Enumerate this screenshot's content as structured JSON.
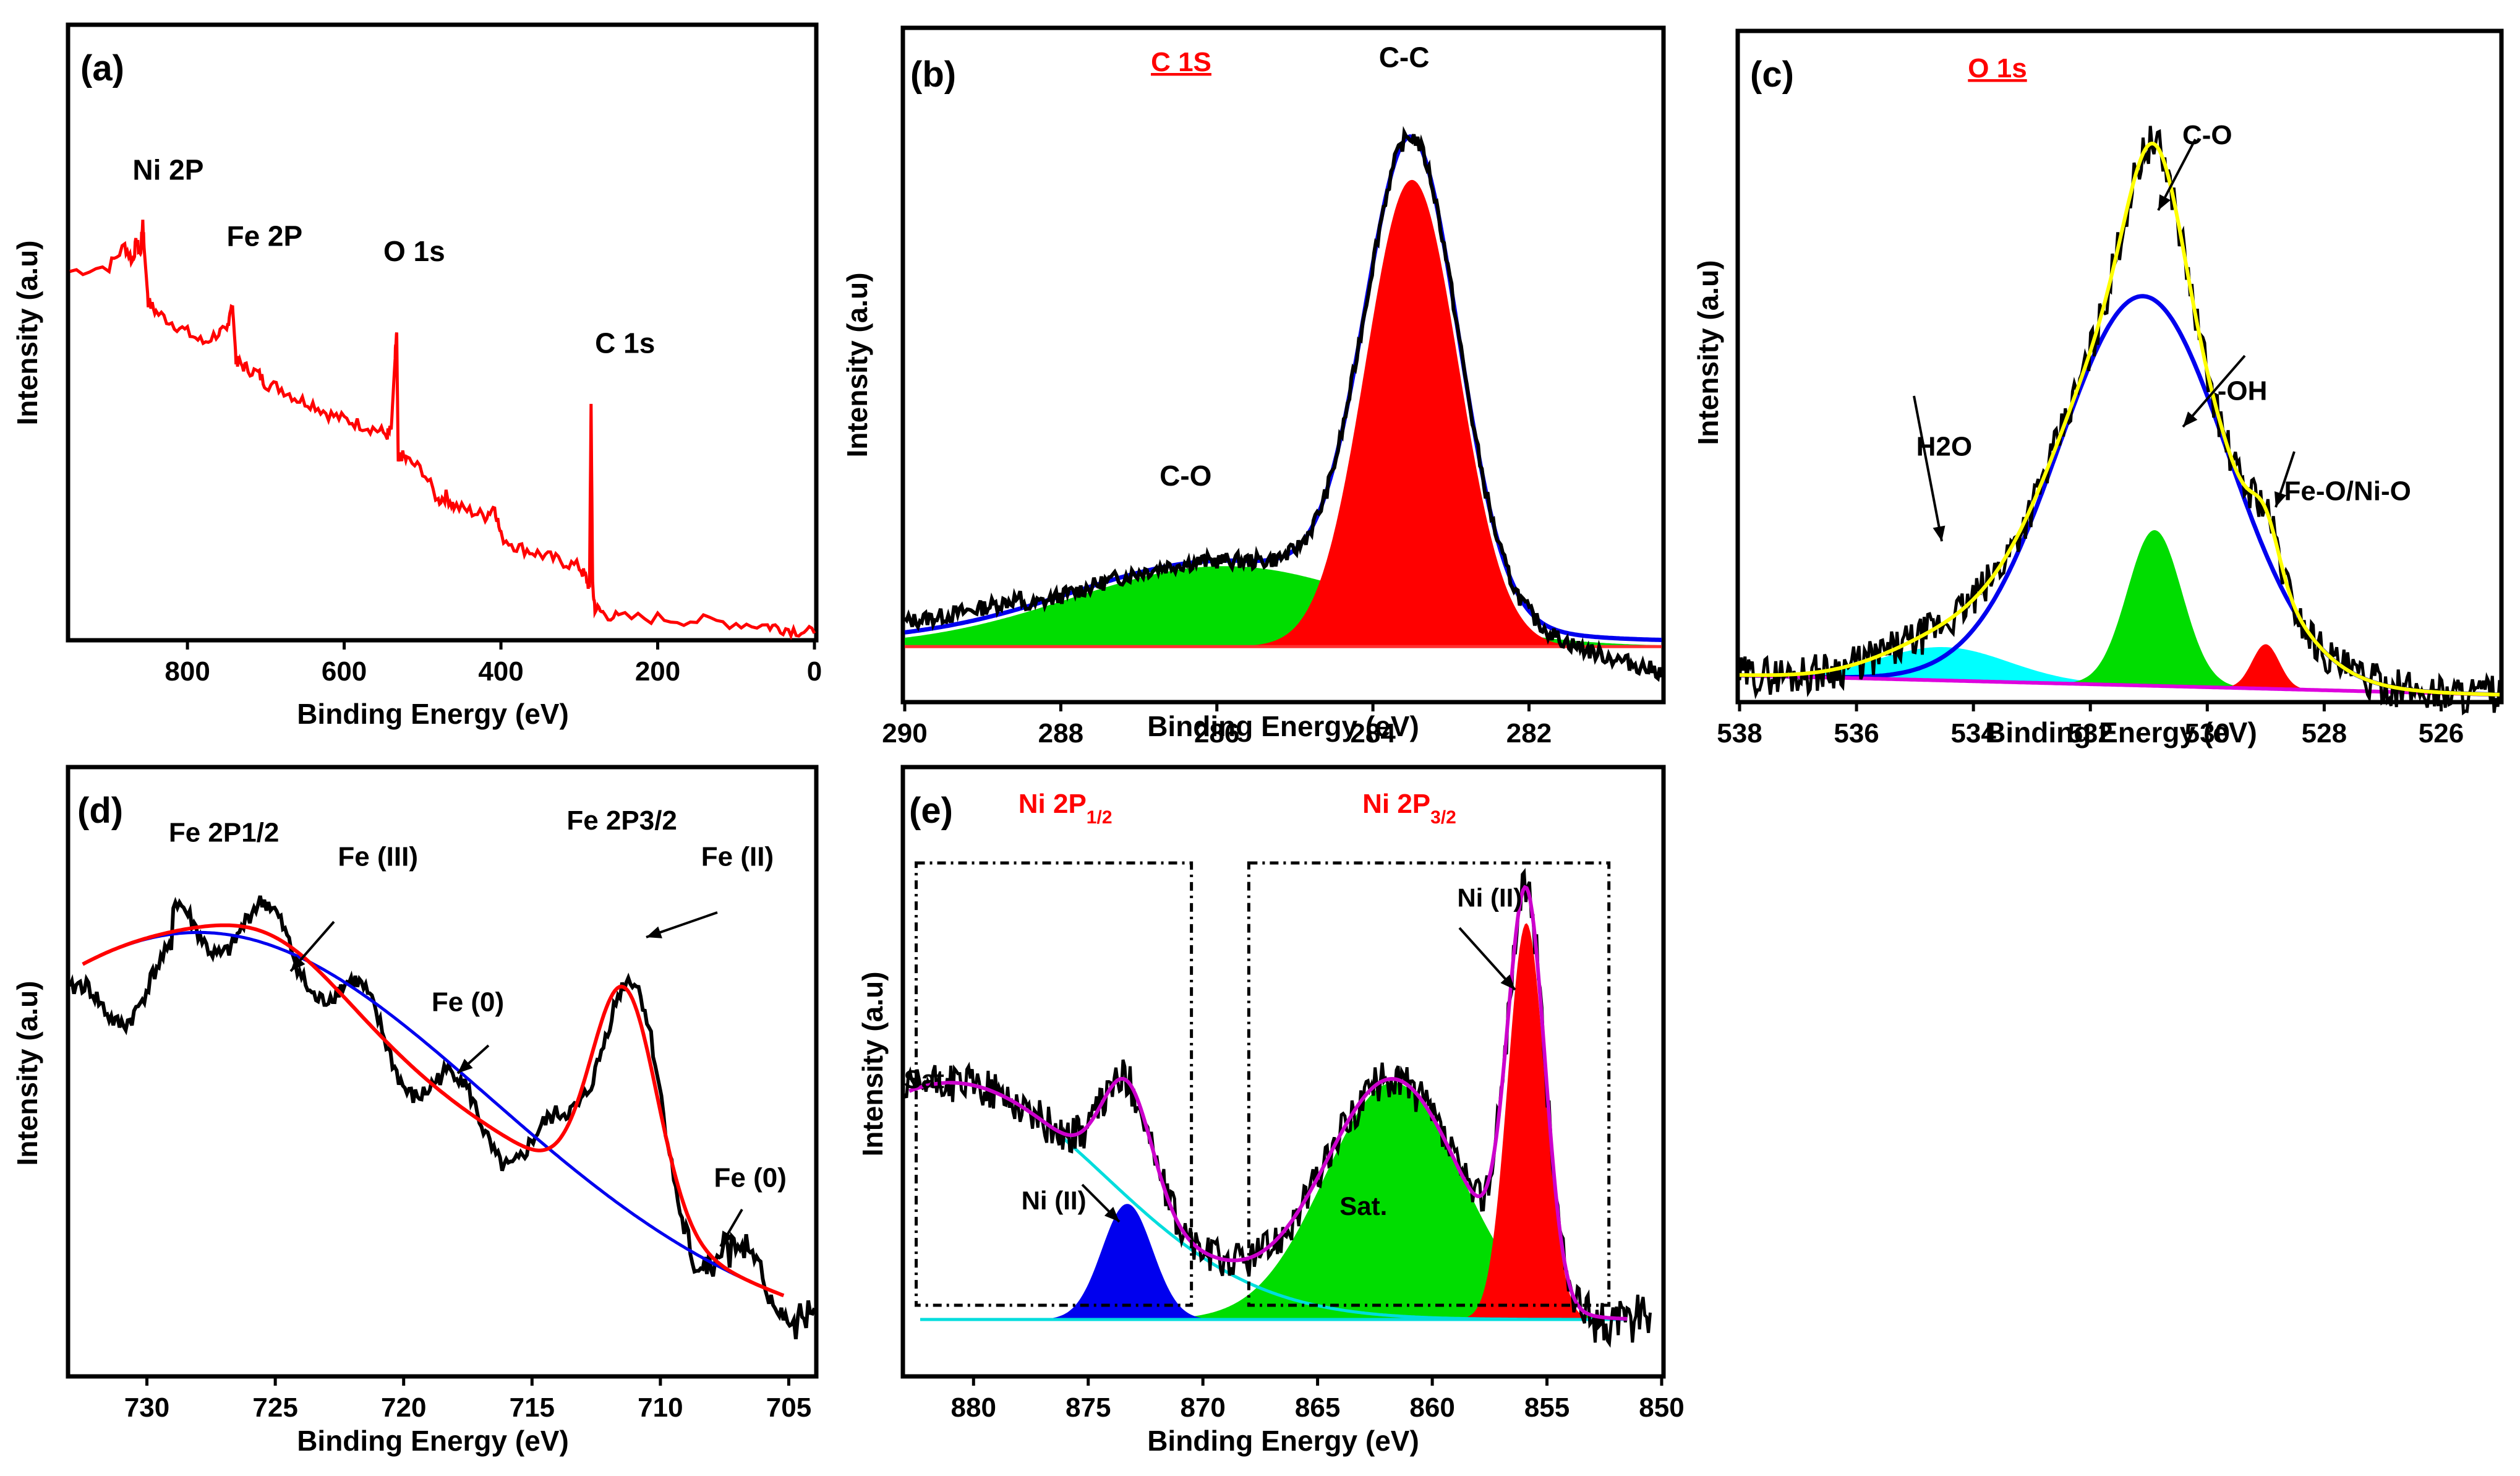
{
  "chart_data": [
    {
      "panel": "(a)",
      "type": "line",
      "title": "",
      "xlabel": "Binding Energy (eV)",
      "ylabel": "Intensity (a.u)",
      "xlim": [
        950,
        0
      ],
      "ylim": [
        0,
        1.2
      ],
      "xticks": [
        800,
        600,
        400,
        200,
        0
      ],
      "series": [
        {
          "name": "Survey",
          "color": "#ff0000",
          "x": [
            950,
            900,
            880,
            870,
            865,
            860,
            857,
            855,
            850,
            840,
            820,
            800,
            780,
            760,
            750,
            745,
            742,
            738,
            735,
            725,
            710,
            700,
            680,
            660,
            640,
            620,
            600,
            580,
            560,
            545,
            540,
            535,
            533,
            531,
            528,
            520,
            500,
            480,
            470,
            460,
            440,
            420,
            408,
            400,
            380,
            360,
            340,
            320,
            300,
            292,
            287,
            285,
            283,
            280,
            270,
            250,
            200,
            150,
            100,
            60,
            40,
            20,
            0
          ],
          "y": [
            0.72,
            0.73,
            0.77,
            0.74,
            0.78,
            0.75,
            0.82,
            0.76,
            0.66,
            0.64,
            0.62,
            0.6,
            0.58,
            0.6,
            0.6,
            0.65,
            0.64,
            0.55,
            0.54,
            0.53,
            0.52,
            0.5,
            0.49,
            0.47,
            0.46,
            0.44,
            0.43,
            0.42,
            0.41,
            0.4,
            0.41,
            0.55,
            0.6,
            0.34,
            0.36,
            0.35,
            0.33,
            0.27,
            0.28,
            0.26,
            0.25,
            0.24,
            0.26,
            0.2,
            0.18,
            0.17,
            0.16,
            0.15,
            0.14,
            0.12,
            0.1,
            0.46,
            0.1,
            0.06,
            0.05,
            0.04,
            0.04,
            0.035,
            0.03,
            0.025,
            0.02,
            0.015,
            0.01
          ]
        }
      ],
      "annotations": [
        {
          "text": "Ni 2P",
          "x": 870,
          "y": 0.9
        },
        {
          "text": "Fe 2P",
          "x": 750,
          "y": 0.77
        },
        {
          "text": "O 1s",
          "x": 550,
          "y": 0.74
        },
        {
          "text": "C 1s",
          "x": 280,
          "y": 0.56
        }
      ]
    },
    {
      "panel": "(b)",
      "type": "area",
      "title": "C 1S",
      "xlabel": "Binding Energy (eV)",
      "ylabel": "Intensity (a.u)",
      "xlim": [
        290,
        280.3
      ],
      "ylim": [
        -0.1,
        1.15
      ],
      "xticks": [
        290,
        288,
        286,
        284,
        282
      ],
      "series": [
        {
          "name": "C-C",
          "type": "peak",
          "color": "#ff0000",
          "center": 283.5,
          "fwhm": 1.4,
          "height": 0.87
        },
        {
          "name": "C-O",
          "type": "peak",
          "color": "#00dd00",
          "center": 285.9,
          "fwhm": 4.6,
          "height": 0.15
        },
        {
          "name": "Background",
          "type": "line",
          "color": "#ff3030",
          "value": 0.0
        },
        {
          "name": "Envelope",
          "type": "line",
          "color": "#0000ee"
        },
        {
          "name": "Experimental",
          "type": "line",
          "color": "#000000"
        }
      ],
      "annotations": [
        {
          "text": "C-C",
          "x": 283.6,
          "y": 1.08
        },
        {
          "text": "C-O",
          "x": 286.4,
          "y": 0.3
        }
      ]
    },
    {
      "panel": "(c)",
      "type": "area",
      "title": "O 1s",
      "xlabel": "Binding Energy (eV)",
      "ylabel": "Intensity (a.u)",
      "xlim": [
        538,
        525
      ],
      "ylim": [
        0,
        1.2
      ],
      "xticks": [
        538,
        536,
        534,
        532,
        530,
        528,
        526
      ],
      "series": [
        {
          "name": "C-O",
          "type": "peak",
          "color": "#0000ee",
          "center": 531.1,
          "fwhm": 3.4,
          "height": 0.7
        },
        {
          "name": "-OH",
          "type": "peak",
          "color": "#00dd00",
          "center": 530.9,
          "fwhm": 1.1,
          "height": 0.28
        },
        {
          "name": "Fe-O/Ni-O",
          "type": "peak",
          "color": "#ff0000",
          "center": 529.0,
          "fwhm": 0.55,
          "height": 0.08
        },
        {
          "name": "H2O",
          "type": "peak",
          "color": "#00ffff",
          "center": 534.5,
          "fwhm": 2.6,
          "height": 0.06
        },
        {
          "name": "Background",
          "type": "line",
          "color": "#dd00dd"
        },
        {
          "name": "Envelope",
          "type": "line",
          "color": "#ffff00"
        },
        {
          "name": "Experimental",
          "type": "line",
          "color": "#000000"
        }
      ],
      "annotations": [
        {
          "text": "C-O",
          "x": 530.0,
          "y": 1.0
        },
        {
          "text": "-OH",
          "x": 529.4,
          "y": 0.54
        },
        {
          "text": "H2O",
          "x": 534.5,
          "y": 0.44
        },
        {
          "text": "Fe-O/Ni-O",
          "x": 527.6,
          "y": 0.36
        }
      ]
    },
    {
      "panel": "(d)",
      "type": "line",
      "title": "",
      "xlabel": "Binding Energy (eV)",
      "ylabel": "Intensity (a.u)",
      "xlim": [
        733,
        704
      ],
      "ylim": [
        0,
        1.0
      ],
      "xticks": [
        730,
        725,
        720,
        715,
        710,
        705
      ],
      "series": [
        {
          "name": "Fit",
          "type": "line",
          "color": "#ff0000"
        },
        {
          "name": "Background",
          "type": "line",
          "color": "#0000ee"
        },
        {
          "name": "Experimental",
          "type": "line",
          "color": "#000000"
        }
      ],
      "annotations": [
        {
          "text": "Fe 2P1/2",
          "x": 727.0,
          "y": 0.88
        },
        {
          "text": "Fe (III)",
          "x": 721.0,
          "y": 0.84
        },
        {
          "text": "Fe 2P3/2",
          "x": 711.5,
          "y": 0.9
        },
        {
          "text": "Fe (II)",
          "x": 707.0,
          "y": 0.84
        },
        {
          "text": "Fe (0)",
          "x": 717.5,
          "y": 0.6
        },
        {
          "text": "Fe (0)",
          "x": 706.5,
          "y": 0.31
        }
      ]
    },
    {
      "panel": "(e)",
      "type": "area",
      "title": "",
      "xlabel": "Binding Energy (eV)",
      "ylabel": "Intensity (a.u)",
      "xlim": [
        883,
        850
      ],
      "ylim": [
        -0.1,
        1.0
      ],
      "xticks": [
        880,
        875,
        870,
        865,
        860,
        855,
        850
      ],
      "series": [
        {
          "name": "Ni (II) 2P3/2",
          "type": "peak",
          "color": "#ff0000",
          "center": 855.9,
          "fwhm": 1.9,
          "height": 0.72
        },
        {
          "name": "Sat. 2P3/2",
          "type": "peak",
          "color": "#00dd00",
          "center": 861.7,
          "fwhm": 7.0,
          "height": 0.43
        },
        {
          "name": "Ni (II) 2P1/2",
          "type": "peak",
          "color": "#0000ee",
          "center": 873.3,
          "fwhm": 2.6,
          "height": 0.21
        },
        {
          "name": "Sat. 2P1/2",
          "type": "line",
          "color": "#00dddd"
        },
        {
          "name": "Envelope",
          "type": "line",
          "color": "#cc00cc"
        },
        {
          "name": "Experimental",
          "type": "line",
          "color": "#000000"
        }
      ],
      "regions": [
        {
          "label": "Ni 2P1/2",
          "x": [
            882.5,
            870.5
          ]
        },
        {
          "label": "Ni 2P3/2",
          "x": [
            868.0,
            852.3
          ]
        }
      ],
      "annotations": [
        {
          "text": "Ni 2P",
          "sub": "1/2",
          "x": 876.0,
          "y": 0.92
        },
        {
          "text": "Ni 2P",
          "sub": "3/2",
          "x": 861.0,
          "y": 0.92
        },
        {
          "text": "Ni (II)",
          "x": 857.5,
          "y": 0.75
        },
        {
          "text": "Sat.",
          "x": 882.0,
          "y": 0.42
        },
        {
          "text": "Ni (II)",
          "x": 876.5,
          "y": 0.2
        },
        {
          "text": "Sat.",
          "x": 863.0,
          "y": 0.19
        }
      ]
    }
  ],
  "panel_labels": [
    "(a)",
    "(b)",
    "(c)",
    "(d)",
    "(e)"
  ],
  "font": {}
}
